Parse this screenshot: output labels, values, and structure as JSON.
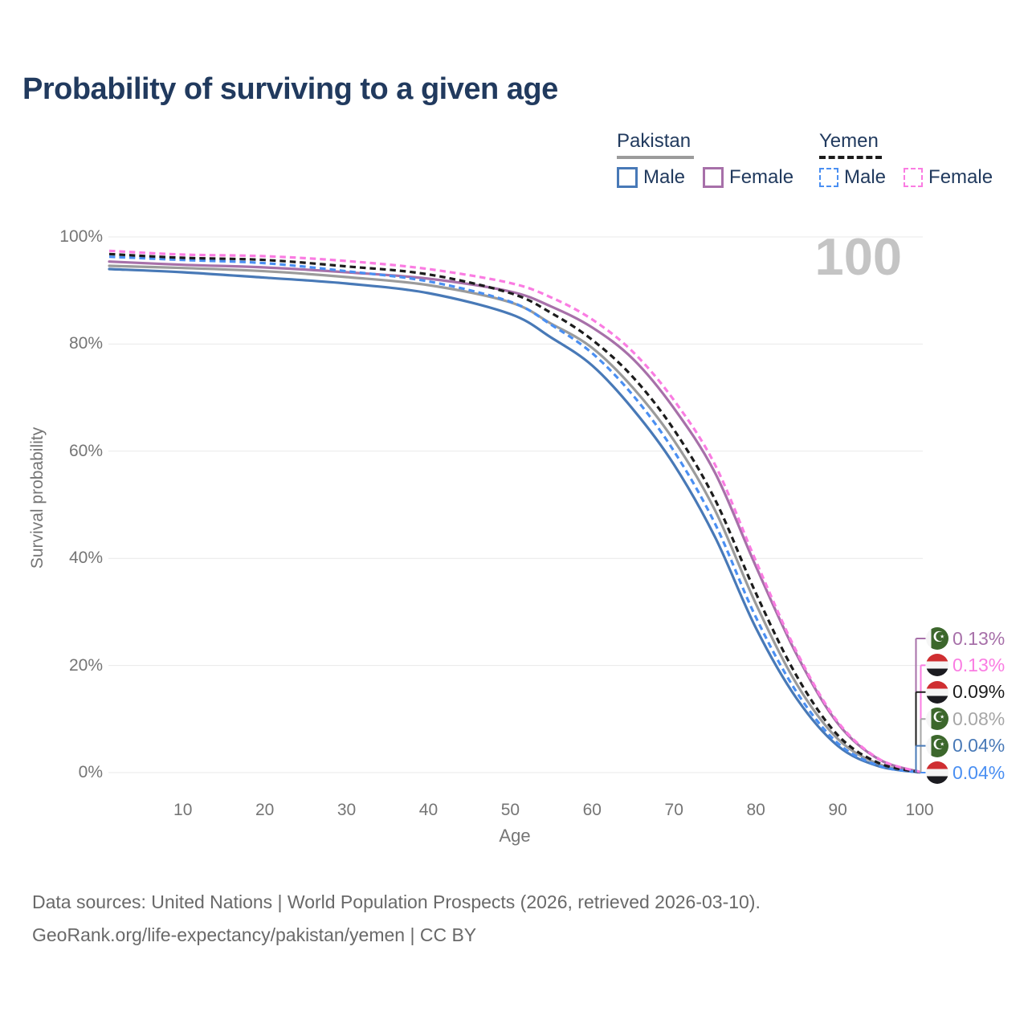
{
  "page": {
    "title": "Probability of surviving to a given age",
    "watermark": "100"
  },
  "legend": {
    "groups": [
      {
        "label": "Pakistan",
        "line_style": "solid",
        "line_color": "#9b9b9b",
        "underline_width": 96,
        "items": [
          {
            "label": "Male",
            "color": "#4879b7",
            "style": "solid"
          },
          {
            "label": "Female",
            "color": "#a770a9",
            "style": "solid"
          }
        ]
      },
      {
        "label": "Yemen",
        "line_style": "dashed",
        "line_color": "#1c1c1c",
        "underline_width": 78,
        "items": [
          {
            "label": "Male",
            "color": "#4a8ff2",
            "style": "dashed"
          },
          {
            "label": "Female",
            "color": "#fa7ce2",
            "style": "dashed"
          }
        ]
      }
    ]
  },
  "chart_data": {
    "type": "line",
    "title": "Probability of surviving to a given age",
    "xlabel": "Age",
    "ylabel": "Survival probability",
    "xlim": [
      1,
      100
    ],
    "ylim": [
      0,
      100
    ],
    "grid": "horizontal",
    "legend_position": "top-right",
    "x_ticks": [
      10,
      20,
      30,
      40,
      50,
      60,
      70,
      80,
      90,
      100
    ],
    "y_tick_labels": [
      "0%",
      "20%",
      "40%",
      "60%",
      "80%",
      "100%"
    ],
    "ages": [
      1,
      10,
      20,
      30,
      40,
      50,
      55,
      60,
      65,
      70,
      75,
      80,
      85,
      90,
      95,
      100
    ],
    "series": [
      {
        "id": "pakistan_both",
        "name": "Pakistan (both sexes)",
        "color": "#9b9b9b",
        "dashed": false,
        "values": [
          94.6,
          94.2,
          93.6,
          92.5,
          91.0,
          87.8,
          83.8,
          79.3,
          71.8,
          62.0,
          49.0,
          31.5,
          16.5,
          6.3,
          1.6,
          0.08
        ]
      },
      {
        "id": "pakistan_male",
        "name": "Pakistan Male",
        "color": "#4879b7",
        "dashed": false,
        "values": [
          94.0,
          93.4,
          92.4,
          91.3,
          89.5,
          85.6,
          81.2,
          76.0,
          67.8,
          57.5,
          44.0,
          27.0,
          13.8,
          5.0,
          1.2,
          0.04
        ]
      },
      {
        "id": "pakistan_female",
        "name": "Pakistan Female",
        "color": "#a770a9",
        "dashed": false,
        "values": [
          95.4,
          94.8,
          94.3,
          93.4,
          92.2,
          89.8,
          87.0,
          83.1,
          77.2,
          68.0,
          56.0,
          38.5,
          22.0,
          9.2,
          2.5,
          0.13
        ]
      },
      {
        "id": "yemen_male",
        "name": "Yemen Male",
        "color": "#4a8ff2",
        "dashed": true,
        "values": [
          96.3,
          95.7,
          95.1,
          93.6,
          91.7,
          87.9,
          83.6,
          78.3,
          70.4,
          60.0,
          46.5,
          29.0,
          15.0,
          5.5,
          1.3,
          0.04
        ]
      },
      {
        "id": "yemen_both",
        "name": "Yemen (both sexes)",
        "color": "#1c1c1c",
        "dashed": true,
        "values": [
          96.8,
          96.1,
          95.7,
          94.5,
          93.0,
          89.5,
          85.8,
          80.8,
          73.8,
          64.0,
          51.0,
          33.5,
          18.0,
          7.0,
          1.8,
          0.09
        ]
      },
      {
        "id": "yemen_female",
        "name": "Yemen Female",
        "color": "#fa7ce2",
        "dashed": true,
        "values": [
          97.4,
          96.7,
          96.4,
          95.5,
          94.0,
          91.4,
          88.7,
          84.6,
          78.5,
          69.5,
          57.5,
          39.5,
          22.5,
          9.5,
          2.6,
          0.13
        ]
      }
    ]
  },
  "end_labels": [
    {
      "flag": "pakistan-flag",
      "series": "pakistan_female",
      "value": "0.13%",
      "color": "#a770a9"
    },
    {
      "flag": "yemen-flag",
      "series": "yemen_female",
      "value": "0.13%",
      "color": "#fa7ce2"
    },
    {
      "flag": "yemen-flag",
      "series": "yemen_both",
      "value": "0.09%",
      "color": "#1c1c1c"
    },
    {
      "flag": "pakistan-flag",
      "series": "pakistan_both",
      "value": "0.08%",
      "color": "#a6a6a6"
    },
    {
      "flag": "pakistan-flag",
      "series": "pakistan_male",
      "value": "0.04%",
      "color": "#4879b7"
    },
    {
      "flag": "yemen-flag",
      "series": "yemen_male",
      "value": "0.04%",
      "color": "#4a8ff2"
    }
  ],
  "footer": {
    "line1": "Data sources: United Nations | World Population Prospects (2026, retrieved 2026-03-10).",
    "line2": "GeoRank.org/life-expectancy/pakistan/yemen | CC BY"
  }
}
